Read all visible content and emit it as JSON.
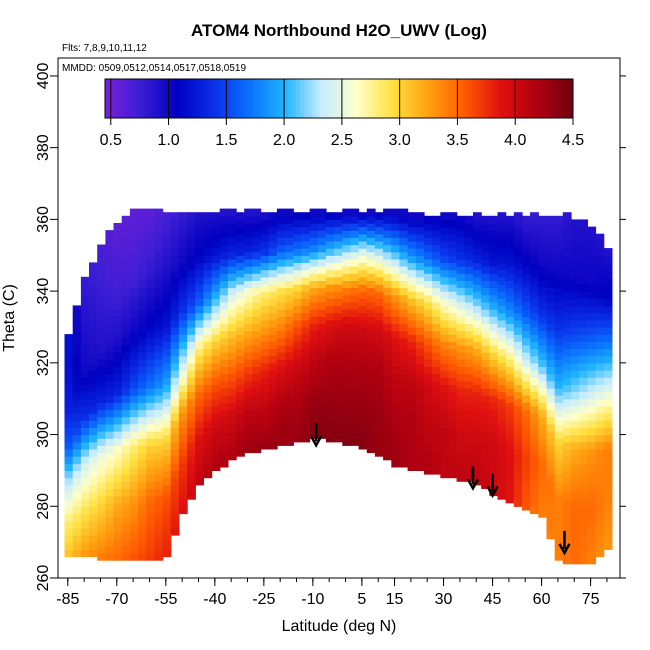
{
  "chart_data": {
    "type": "heatmap",
    "title": "ATOM4 Northbound H2O_UWV (Log)",
    "annotations": {
      "flights": "Flts: 7,8,9,10,11,12",
      "dates": "MMDD: 0509,0512,0514,0517,0518,0519"
    },
    "xlabel": "Latitude (deg N)",
    "ylabel": "Theta (C)",
    "xlim": [
      -88,
      84
    ],
    "ylim": [
      260,
      405
    ],
    "x_ticks": [
      -85,
      -70,
      -55,
      -40,
      -25,
      -10,
      5,
      15,
      30,
      45,
      60,
      75
    ],
    "y_ticks": [
      260,
      280,
      300,
      320,
      340,
      360,
      380,
      400
    ],
    "colorbar": {
      "range": [
        0.45,
        4.5
      ],
      "ticks": [
        0.5,
        1.0,
        1.5,
        2.0,
        2.5,
        3.0,
        3.5,
        4.0,
        4.5
      ],
      "colors": [
        "#7a1fd8",
        "#3a1ed4",
        "#0000c0",
        "#0a2ee8",
        "#0a70ff",
        "#20b4ff",
        "#c6ecff",
        "#ffffc8",
        "#ffe040",
        "#ffa010",
        "#ff5a00",
        "#e01010",
        "#b00010",
        "#700010"
      ]
    },
    "surface": {
      "lat": [
        -85,
        -80,
        -75,
        -70,
        -65,
        -60,
        -55,
        -50,
        -45,
        -40,
        -35,
        -30,
        -25,
        -20,
        -15,
        -10,
        -5,
        0,
        5,
        10,
        15,
        20,
        25,
        30,
        35,
        40,
        45,
        50,
        55,
        60,
        65,
        70,
        75,
        80
      ],
      "top_theta": [
        327,
        343,
        352,
        358,
        361,
        362,
        362,
        362,
        362,
        362,
        362,
        362,
        362,
        362,
        362,
        362,
        362,
        362,
        362,
        362,
        362,
        361,
        361,
        361,
        361,
        361,
        361,
        361,
        361,
        361,
        361,
        360,
        358,
        352
      ],
      "bottom_theta": [
        266,
        266,
        266,
        265,
        265,
        265,
        266,
        278,
        286,
        290,
        293,
        295,
        296,
        297,
        298,
        299,
        299,
        298,
        297,
        295,
        292,
        291,
        290,
        289,
        288,
        287,
        284,
        282,
        280,
        278,
        266,
        264,
        264,
        268
      ],
      "log_h2o": [
        [
          1.2,
          1.2,
          1.3,
          1.6,
          2.3,
          2.8,
          3.1
        ],
        [
          0.8,
          0.9,
          1.0,
          1.4,
          2.4,
          2.9,
          3.3
        ],
        [
          0.7,
          0.8,
          0.9,
          1.3,
          2.5,
          3.0,
          3.4
        ],
        [
          0.6,
          0.7,
          0.9,
          1.3,
          2.6,
          3.2,
          3.5
        ],
        [
          0.6,
          0.7,
          1.0,
          1.5,
          2.8,
          3.3,
          3.6
        ],
        [
          0.6,
          0.8,
          1.1,
          1.7,
          3.0,
          3.5,
          3.7
        ],
        [
          0.7,
          0.9,
          1.2,
          1.9,
          3.0,
          3.6,
          3.8
        ],
        [
          0.8,
          1.0,
          1.4,
          2.3,
          3.3,
          3.7,
          3.9
        ],
        [
          0.9,
          1.1,
          1.6,
          2.8,
          3.5,
          3.9,
          4.1
        ],
        [
          0.9,
          1.2,
          2.0,
          3.0,
          3.6,
          4.0,
          4.2
        ],
        [
          0.9,
          1.3,
          2.4,
          3.1,
          3.6,
          4.0,
          4.2
        ],
        [
          0.9,
          1.3,
          2.6,
          3.2,
          3.7,
          4.1,
          4.3
        ],
        [
          0.9,
          1.4,
          2.8,
          3.3,
          3.8,
          4.1,
          4.3
        ],
        [
          1.0,
          1.6,
          2.9,
          3.4,
          3.9,
          4.2,
          4.3
        ],
        [
          1.0,
          1.7,
          3.0,
          3.6,
          4.0,
          4.2,
          4.3
        ],
        [
          1.0,
          1.8,
          3.2,
          3.8,
          4.1,
          4.3,
          4.4
        ],
        [
          1.0,
          2.0,
          3.3,
          3.9,
          4.2,
          4.3,
          4.4
        ],
        [
          1.0,
          2.2,
          3.4,
          4.0,
          4.2,
          4.3,
          4.4
        ],
        [
          1.0,
          2.4,
          3.5,
          4.0,
          4.2,
          4.3,
          4.4
        ],
        [
          1.0,
          2.3,
          3.5,
          4.0,
          4.2,
          4.3,
          4.3
        ],
        [
          1.0,
          2.1,
          3.3,
          3.9,
          4.1,
          4.2,
          4.3
        ],
        [
          1.0,
          1.9,
          3.1,
          3.8,
          4.1,
          4.2,
          4.2
        ],
        [
          1.0,
          1.7,
          2.9,
          3.6,
          4.0,
          4.1,
          4.2
        ],
        [
          1.0,
          1.5,
          2.6,
          3.4,
          3.9,
          4.1,
          4.1
        ],
        [
          1.0,
          1.4,
          2.4,
          3.3,
          3.8,
          4.0,
          4.1
        ],
        [
          0.9,
          1.3,
          2.2,
          3.2,
          3.8,
          4.0,
          4.1
        ],
        [
          0.9,
          1.2,
          2.0,
          3.0,
          3.8,
          4.0,
          4.0
        ],
        [
          0.9,
          1.2,
          1.8,
          2.8,
          3.7,
          3.9,
          3.9
        ],
        [
          0.8,
          1.1,
          1.6,
          2.4,
          3.5,
          3.7,
          3.6
        ],
        [
          0.8,
          1.0,
          1.4,
          2.1,
          3.2,
          3.5,
          3.4
        ],
        [
          0.8,
          1.0,
          1.4,
          2.0,
          3.0,
          3.4,
          3.4
        ],
        [
          0.9,
          1.0,
          1.5,
          2.2,
          3.2,
          3.5,
          3.5
        ],
        [
          0.9,
          1.0,
          1.6,
          2.4,
          3.3,
          3.5,
          3.4
        ],
        [
          0.9,
          1.1,
          1.8,
          2.6,
          3.4,
          3.4,
          3.3
        ]
      ]
    },
    "arrows": [
      {
        "lat": -9,
        "theta": 297
      },
      {
        "lat": 39,
        "theta": 285
      },
      {
        "lat": 45,
        "theta": 283
      },
      {
        "lat": 67,
        "theta": 267
      }
    ]
  }
}
